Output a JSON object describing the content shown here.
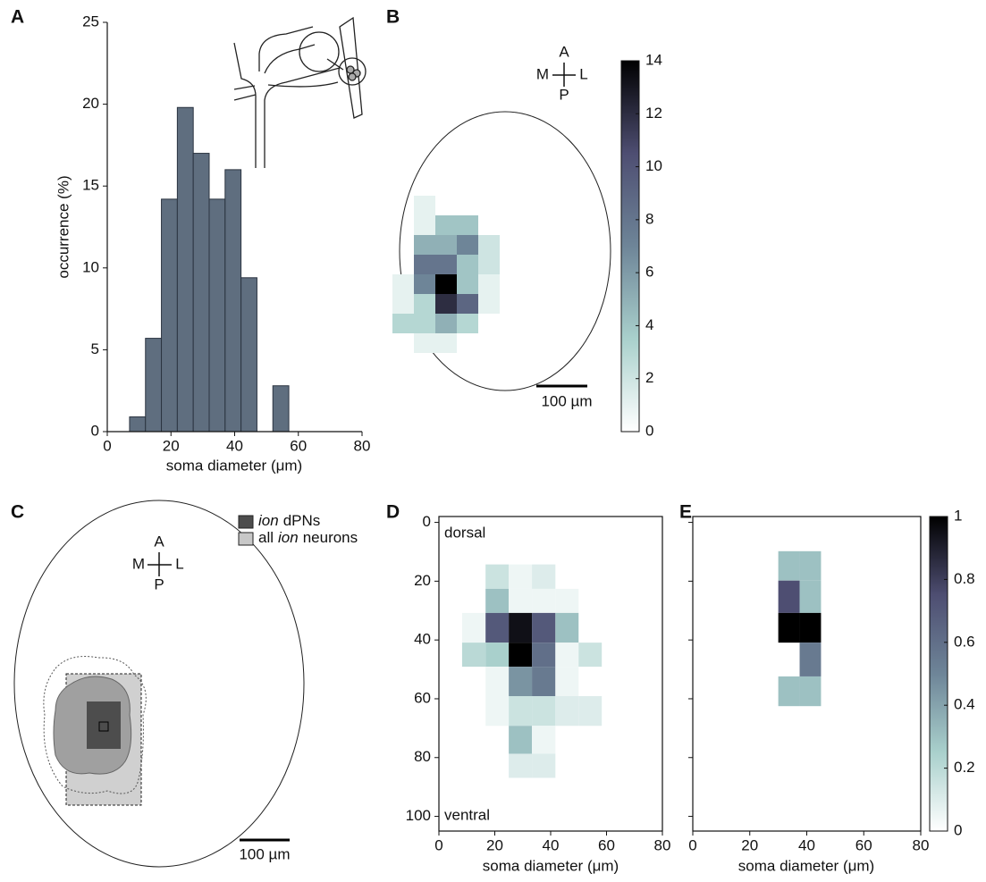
{
  "chart_data": [
    {
      "type": "histogram",
      "panel": "A",
      "xlabel": "soma diameter (μm)",
      "ylabel": "occurrence (%)",
      "bins": [
        7,
        12,
        17,
        22,
        27,
        32,
        37,
        42,
        47,
        52,
        57
      ],
      "values": [
        0.9,
        5.7,
        14.2,
        19.8,
        17,
        14.2,
        16,
        9.4,
        0,
        2.8
      ],
      "color": "#5f6e7f",
      "xlim": [
        0,
        80
      ],
      "xticks": [
        0,
        20,
        40,
        60,
        80
      ],
      "ylim": [
        0,
        25
      ],
      "yticks": [
        0,
        5,
        10,
        15,
        20,
        25
      ]
    },
    {
      "type": "heatmap",
      "panel": "B",
      "compass": [
        "A",
        "M",
        "L",
        "P"
      ],
      "scale_bar": "100 µm",
      "values": [
        [
          null,
          1,
          null,
          null,
          null
        ],
        [
          null,
          1,
          4,
          4,
          null
        ],
        [
          null,
          5,
          5,
          7,
          2
        ],
        [
          null,
          8,
          8,
          4,
          2
        ],
        [
          1,
          7,
          14,
          4,
          1
        ],
        [
          1,
          3,
          12,
          9,
          1
        ],
        [
          3,
          3,
          5,
          3,
          null
        ],
        [
          null,
          1,
          1,
          null,
          null
        ]
      ],
      "colormap": [
        "#ffffff",
        "#a9d0cc",
        "#6e8598",
        "#4e4e72",
        "#000000"
      ],
      "clim": [
        0,
        14
      ],
      "cticks": [
        0,
        2,
        4,
        6,
        8,
        10,
        12,
        14
      ]
    },
    {
      "type": "outline",
      "panel": "C",
      "legend": [
        [
          "ion",
          "dPNs"
        ],
        [
          "all",
          "ion",
          "neurons"
        ]
      ],
      "legend_colors": [
        "#4d4d4d",
        "#c8c8c8"
      ],
      "compass": [
        "A",
        "M",
        "L",
        "P"
      ],
      "scale_bar": "100 µm"
    },
    {
      "type": "heatmap",
      "panel": "D",
      "xlabel": "soma diameter (μm)",
      "annotations": [
        "dorsal",
        "ventral"
      ],
      "x_edges": [
        8.3,
        16.7,
        25,
        33.3,
        41.7,
        50,
        58.3
      ],
      "y_edges": [
        14.3,
        22.6,
        30.8,
        40.9,
        49.1,
        59.1,
        69.2,
        78.7,
        86.9
      ],
      "values": [
        [
          null,
          0.15,
          0.05,
          0.1,
          null,
          null
        ],
        [
          null,
          0.3,
          0.05,
          0.05,
          0.05,
          null
        ],
        [
          0.05,
          0.7,
          0.95,
          0.7,
          0.3,
          null
        ],
        [
          0.2,
          0.25,
          1,
          0.6,
          0.05,
          0.15
        ],
        [
          null,
          0.05,
          0.45,
          0.55,
          0.05,
          null
        ],
        [
          null,
          0.05,
          0.15,
          0.15,
          0.1,
          0.1
        ],
        [
          null,
          null,
          0.3,
          0.05,
          null,
          null
        ],
        [
          null,
          null,
          0.1,
          0.1,
          null,
          null
        ]
      ],
      "colormap": [
        "#ffffff",
        "#a9d0cc",
        "#6e8598",
        "#4e4e72",
        "#000000"
      ],
      "clim": [
        0,
        1
      ],
      "xlim": [
        0,
        80
      ],
      "xticks": [
        0,
        20,
        40,
        60,
        80
      ],
      "ylim": [
        -2,
        105
      ],
      "yticks": [
        0,
        20,
        40,
        60,
        80,
        100
      ],
      "y_inverted": true
    },
    {
      "type": "heatmap",
      "panel": "E",
      "xlabel": "soma diameter (μm)",
      "x_edges": [
        30,
        37.5,
        45
      ],
      "y_edges": [
        9.8,
        19.8,
        30.8,
        40.9,
        52.4,
        62.5
      ],
      "values": [
        [
          0.3,
          0.3
        ],
        [
          0.75,
          0.3
        ],
        [
          1,
          1
        ],
        [
          null,
          0.55
        ],
        [
          0.3,
          0.3
        ]
      ],
      "colormap": [
        "#ffffff",
        "#a9d0cc",
        "#6e8598",
        "#4e4e72",
        "#000000"
      ],
      "clim": [
        0,
        1
      ],
      "cticks": [
        0,
        0.2,
        0.4,
        0.6,
        0.8,
        1
      ],
      "xlim": [
        0,
        80
      ],
      "xticks": [
        0,
        20,
        40,
        60,
        80
      ],
      "ylim": [
        -2,
        105
      ],
      "yticks": [
        0,
        20,
        40,
        60,
        80,
        100
      ],
      "y_inverted": true,
      "show_ytick_labels": false
    }
  ]
}
